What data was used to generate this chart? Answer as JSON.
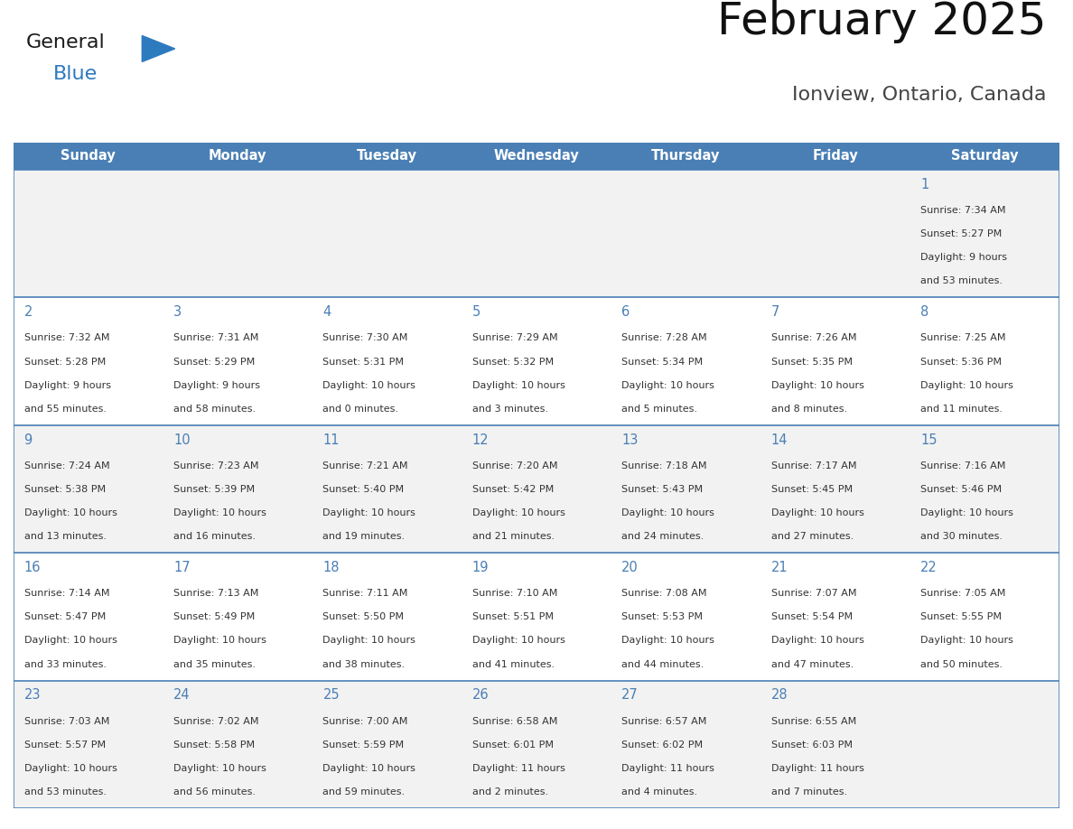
{
  "title": "February 2025",
  "subtitle": "Ionview, Ontario, Canada",
  "header_bg": "#4a7fb5",
  "header_text": "#ffffff",
  "day_names": [
    "Sunday",
    "Monday",
    "Tuesday",
    "Wednesday",
    "Thursday",
    "Friday",
    "Saturday"
  ],
  "row_bg_odd": "#f2f2f2",
  "row_bg_even": "#ffffff",
  "border_color": "#4a7fb5",
  "day_num_color": "#4a7fb5",
  "cell_text_color": "#333333",
  "logo_general_color": "#1a1a1a",
  "logo_blue_color": "#2e7abf",
  "logo_triangle_color": "#2e7abf",
  "calendar_data": [
    [
      null,
      null,
      null,
      null,
      null,
      null,
      {
        "day": "1",
        "sunrise": "7:34 AM",
        "sunset": "5:27 PM",
        "daylight": "9 hours",
        "daylight2": "and 53 minutes."
      }
    ],
    [
      {
        "day": "2",
        "sunrise": "7:32 AM",
        "sunset": "5:28 PM",
        "daylight": "9 hours",
        "daylight2": "and 55 minutes."
      },
      {
        "day": "3",
        "sunrise": "7:31 AM",
        "sunset": "5:29 PM",
        "daylight": "9 hours",
        "daylight2": "and 58 minutes."
      },
      {
        "day": "4",
        "sunrise": "7:30 AM",
        "sunset": "5:31 PM",
        "daylight": "10 hours",
        "daylight2": "and 0 minutes."
      },
      {
        "day": "5",
        "sunrise": "7:29 AM",
        "sunset": "5:32 PM",
        "daylight": "10 hours",
        "daylight2": "and 3 minutes."
      },
      {
        "day": "6",
        "sunrise": "7:28 AM",
        "sunset": "5:34 PM",
        "daylight": "10 hours",
        "daylight2": "and 5 minutes."
      },
      {
        "day": "7",
        "sunrise": "7:26 AM",
        "sunset": "5:35 PM",
        "daylight": "10 hours",
        "daylight2": "and 8 minutes."
      },
      {
        "day": "8",
        "sunrise": "7:25 AM",
        "sunset": "5:36 PM",
        "daylight": "10 hours",
        "daylight2": "and 11 minutes."
      }
    ],
    [
      {
        "day": "9",
        "sunrise": "7:24 AM",
        "sunset": "5:38 PM",
        "daylight": "10 hours",
        "daylight2": "and 13 minutes."
      },
      {
        "day": "10",
        "sunrise": "7:23 AM",
        "sunset": "5:39 PM",
        "daylight": "10 hours",
        "daylight2": "and 16 minutes."
      },
      {
        "day": "11",
        "sunrise": "7:21 AM",
        "sunset": "5:40 PM",
        "daylight": "10 hours",
        "daylight2": "and 19 minutes."
      },
      {
        "day": "12",
        "sunrise": "7:20 AM",
        "sunset": "5:42 PM",
        "daylight": "10 hours",
        "daylight2": "and 21 minutes."
      },
      {
        "day": "13",
        "sunrise": "7:18 AM",
        "sunset": "5:43 PM",
        "daylight": "10 hours",
        "daylight2": "and 24 minutes."
      },
      {
        "day": "14",
        "sunrise": "7:17 AM",
        "sunset": "5:45 PM",
        "daylight": "10 hours",
        "daylight2": "and 27 minutes."
      },
      {
        "day": "15",
        "sunrise": "7:16 AM",
        "sunset": "5:46 PM",
        "daylight": "10 hours",
        "daylight2": "and 30 minutes."
      }
    ],
    [
      {
        "day": "16",
        "sunrise": "7:14 AM",
        "sunset": "5:47 PM",
        "daylight": "10 hours",
        "daylight2": "and 33 minutes."
      },
      {
        "day": "17",
        "sunrise": "7:13 AM",
        "sunset": "5:49 PM",
        "daylight": "10 hours",
        "daylight2": "and 35 minutes."
      },
      {
        "day": "18",
        "sunrise": "7:11 AM",
        "sunset": "5:50 PM",
        "daylight": "10 hours",
        "daylight2": "and 38 minutes."
      },
      {
        "day": "19",
        "sunrise": "7:10 AM",
        "sunset": "5:51 PM",
        "daylight": "10 hours",
        "daylight2": "and 41 minutes."
      },
      {
        "day": "20",
        "sunrise": "7:08 AM",
        "sunset": "5:53 PM",
        "daylight": "10 hours",
        "daylight2": "and 44 minutes."
      },
      {
        "day": "21",
        "sunrise": "7:07 AM",
        "sunset": "5:54 PM",
        "daylight": "10 hours",
        "daylight2": "and 47 minutes."
      },
      {
        "day": "22",
        "sunrise": "7:05 AM",
        "sunset": "5:55 PM",
        "daylight": "10 hours",
        "daylight2": "and 50 minutes."
      }
    ],
    [
      {
        "day": "23",
        "sunrise": "7:03 AM",
        "sunset": "5:57 PM",
        "daylight": "10 hours",
        "daylight2": "and 53 minutes."
      },
      {
        "day": "24",
        "sunrise": "7:02 AM",
        "sunset": "5:58 PM",
        "daylight": "10 hours",
        "daylight2": "and 56 minutes."
      },
      {
        "day": "25",
        "sunrise": "7:00 AM",
        "sunset": "5:59 PM",
        "daylight": "10 hours",
        "daylight2": "and 59 minutes."
      },
      {
        "day": "26",
        "sunrise": "6:58 AM",
        "sunset": "6:01 PM",
        "daylight": "11 hours",
        "daylight2": "and 2 minutes."
      },
      {
        "day": "27",
        "sunrise": "6:57 AM",
        "sunset": "6:02 PM",
        "daylight": "11 hours",
        "daylight2": "and 4 minutes."
      },
      {
        "day": "28",
        "sunrise": "6:55 AM",
        "sunset": "6:03 PM",
        "daylight": "11 hours",
        "daylight2": "and 7 minutes."
      },
      null
    ]
  ]
}
